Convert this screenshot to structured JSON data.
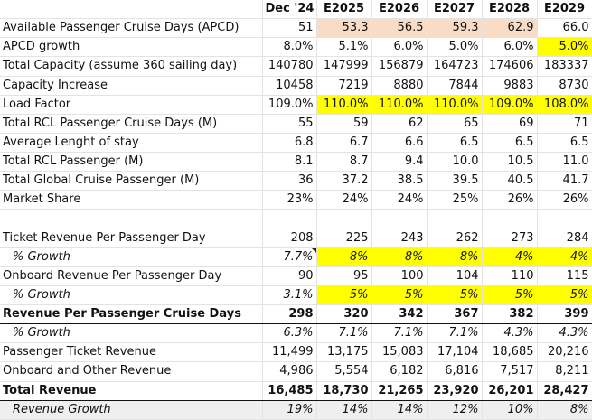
{
  "header": [
    "",
    "Dec '24",
    "E2025",
    "E2026",
    "E2027",
    "E2028",
    "E2029"
  ],
  "rows": [
    {
      "label": "Available Passenger Cruise Days (APCD)",
      "values": [
        "51",
        "53.3",
        "56.5",
        "59.3",
        "62.9",
        "66.0"
      ]
    },
    {
      "label": "APCD growth",
      "values": [
        "8.0%",
        "5.1%",
        "6.0%",
        "5.0%",
        "6.0%",
        "5.0%"
      ]
    },
    {
      "label": "Total Capacity (assume 360 sailing day)",
      "values": [
        "140780",
        "147999",
        "156879",
        "164723",
        "174606",
        "183337"
      ]
    },
    {
      "label": "Capacity Increase",
      "values": [
        "10458",
        "7219",
        "8880",
        "7844",
        "9883",
        "8730"
      ]
    },
    {
      "label": "Load Factor",
      "values": [
        "109.0%",
        "110.0%",
        "110.0%",
        "110.0%",
        "109.0%",
        "108.0%"
      ]
    },
    {
      "label": "Total RCL Passenger Cruise Days (M)",
      "values": [
        "55",
        "59",
        "62",
        "65",
        "69",
        "71"
      ]
    },
    {
      "label": "Average Lenght of stay",
      "values": [
        "6.8",
        "6.7",
        "6.6",
        "6.5",
        "6.5",
        "6.5"
      ]
    },
    {
      "label": "Total RCL Passenger (M)",
      "values": [
        "8.1",
        "8.7",
        "9.4",
        "10.0",
        "10.5",
        "11.0"
      ]
    },
    {
      "label": "Total Global Cruise Passenger (M)",
      "values": [
        "36",
        "37.2",
        "38.5",
        "39.5",
        "40.5",
        "41.7"
      ]
    },
    {
      "label": "Market Share",
      "values": [
        "23%",
        "24%",
        "24%",
        "25%",
        "26%",
        "26%"
      ]
    },
    {
      "label": "",
      "values": [
        "",
        "",
        "",
        "",
        "",
        ""
      ]
    },
    {
      "label": "Ticket Revenue Per Passenger Day",
      "values": [
        "208",
        "225",
        "243",
        "262",
        "273",
        "284"
      ]
    },
    {
      "label": "% Growth",
      "values": [
        "7.7%",
        "8%",
        "8%",
        "8%",
        "4%",
        "4%"
      ]
    },
    {
      "label": "Onboard Revenue Per Passenger Day",
      "values": [
        "90",
        "95",
        "100",
        "104",
        "110",
        "115"
      ]
    },
    {
      "label": "% Growth",
      "values": [
        "3.1%",
        "5%",
        "5%",
        "5%",
        "5%",
        "5%"
      ]
    },
    {
      "label": "Revenue Per Passenger Cruise Days",
      "values": [
        "298",
        "320",
        "342",
        "367",
        "382",
        "399"
      ]
    },
    {
      "label": "% Growth",
      "values": [
        "6.3%",
        "7.1%",
        "7.1%",
        "7.1%",
        "4.3%",
        "4.3%"
      ]
    },
    {
      "label": "Passenger Ticket Revenue",
      "values": [
        "11,499",
        "13,175",
        "15,083",
        "17,104",
        "18,685",
        "20,216"
      ]
    },
    {
      "label": "Onboard and Other Revenue",
      "values": [
        "4,986",
        "5,554",
        "6,182",
        "6,816",
        "7,517",
        "8,211"
      ]
    },
    {
      "label": "Total Revenue",
      "values": [
        "16,485",
        "18,730",
        "21,265",
        "23,920",
        "26,201",
        "28,427"
      ]
    },
    {
      "label": "Revenue Growth",
      "values": [
        "19%",
        "14%",
        "14%",
        "12%",
        "10%",
        "8%"
      ]
    }
  ],
  "colors": {
    "highlight_yellow": "#ffff00",
    "highlight_peach": "#f9dcc6",
    "row_gray": "#efefef"
  }
}
